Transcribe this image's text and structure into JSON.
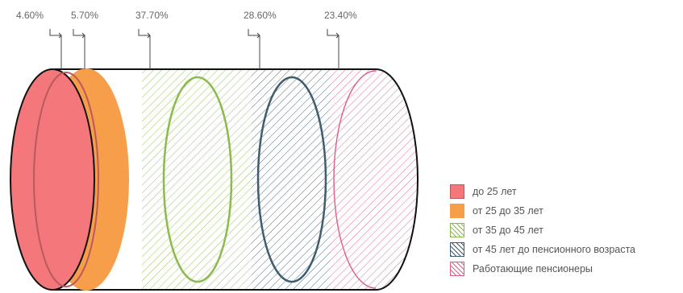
{
  "chart_data": {
    "type": "bar",
    "title": "",
    "categories": [
      "до 25 лет",
      "от 25 до 35 лет",
      "от 35 до 45 лет",
      "от 45 лет до пенсионного возраста",
      "Работающие пенсионеры"
    ],
    "values": [
      4.6,
      5.7,
      37.7,
      28.6,
      23.4
    ],
    "value_labels": [
      "4.60%",
      "5.70%",
      "37.70%",
      "28.60%",
      "23.40%"
    ],
    "unit": "%",
    "colors": [
      "#F4777B",
      "#F79E4B",
      "#8DBA4F",
      "#3F5D6E",
      "#D7608A"
    ],
    "fill_styles": [
      "solid",
      "solid",
      "hatched",
      "hatched",
      "hatched"
    ],
    "legend_position": "bottom-right",
    "grid": false
  }
}
